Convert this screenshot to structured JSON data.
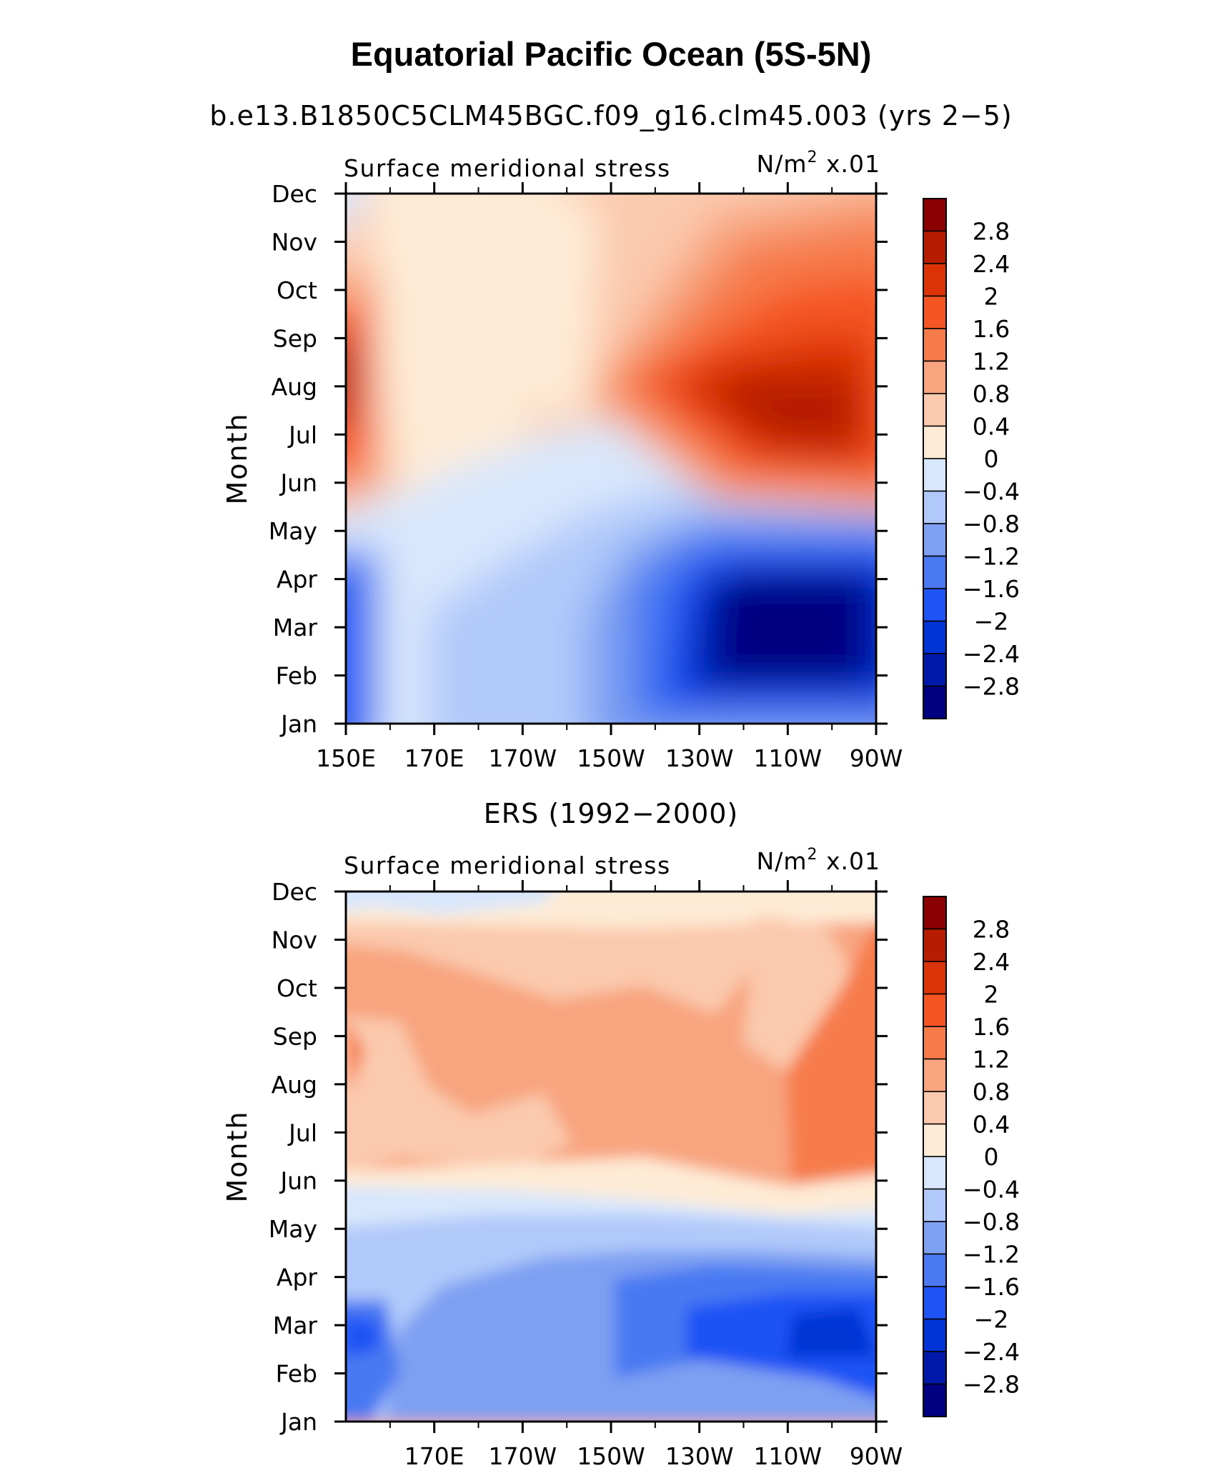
{
  "title": "Equatorial Pacific Ocean (5S-5N)",
  "chart_data": [
    {
      "type": "heatmap",
      "panel_title": "b.e13.B1850C5CLM45BGC.f09_g16.clm45.003 (yrs 2−5)",
      "left_label": "Surface meridional stress",
      "units_base": "N/m",
      "units_sup": "2",
      "units_scale": "x.01",
      "ylabel": "Month",
      "x_ticks": [
        "150E",
        "170E",
        "170W",
        "150W",
        "130W",
        "110W",
        "90W"
      ],
      "x_range_deg_east": [
        150,
        270
      ],
      "y_ticks": [
        "Jan",
        "Feb",
        "Mar",
        "Apr",
        "May",
        "Jun",
        "Jul",
        "Aug",
        "Sep",
        "Oct",
        "Nov",
        "Dec"
      ],
      "colorbar_levels": [
        "2.8",
        "2.4",
        "2",
        "1.6",
        "1.2",
        "0.8",
        "0.4",
        "0",
        "−0.4",
        "−0.8",
        "−1.2",
        "−1.6",
        "−2",
        "−2.4",
        "−2.8"
      ],
      "approx_features": [
        {
          "region": "110W-90W",
          "months": "Jul-Aug",
          "value": 2.5
        },
        {
          "region": "120W-95W",
          "months": "Feb-Apr",
          "value": -3.0
        },
        {
          "region": "150E-152E",
          "months": "Aug",
          "value": 2.4
        },
        {
          "region": "150E-152E",
          "months": "Feb-Mar",
          "value": -1.8
        }
      ]
    },
    {
      "type": "heatmap",
      "panel_title": "ERS (1992−2000)",
      "left_label": "Surface meridional stress",
      "units_base": "N/m",
      "units_sup": "2",
      "units_scale": "x.01",
      "ylabel": "Month",
      "x_ticks": [
        "170E",
        "170W",
        "150W",
        "130W",
        "110W",
        "90W"
      ],
      "x_range_deg_east": [
        150,
        270
      ],
      "y_ticks": [
        "Jan",
        "Feb",
        "Mar",
        "Apr",
        "May",
        "Jun",
        "Jul",
        "Aug",
        "Sep",
        "Oct",
        "Nov",
        "Dec"
      ],
      "colorbar_levels": [
        "2.8",
        "2.4",
        "2",
        "1.6",
        "1.2",
        "0.8",
        "0.4",
        "0",
        "−0.4",
        "−0.8",
        "−1.2",
        "−1.6",
        "−2",
        "−2.4",
        "−2.8"
      ],
      "approx_features": [
        {
          "region": "100W-90W",
          "months": "Jun-Oct",
          "value": 1.4
        },
        {
          "region": "130W-90W",
          "months": "Feb-Apr",
          "value": -2.2
        },
        {
          "region": "150E-170E",
          "months": "Feb-Mar",
          "value": -1.8
        }
      ]
    }
  ],
  "colors": {
    "scale": [
      "#000080",
      "#0019a8",
      "#0034d6",
      "#1e53f5",
      "#4a79f2",
      "#7ea0f2",
      "#b1c9fa",
      "#d8e7fc",
      "#feebd6",
      "#fbc9ad",
      "#f8a47f",
      "#f67b4b",
      "#f55522",
      "#db3306",
      "#b51c00",
      "#8b0000"
    ]
  }
}
